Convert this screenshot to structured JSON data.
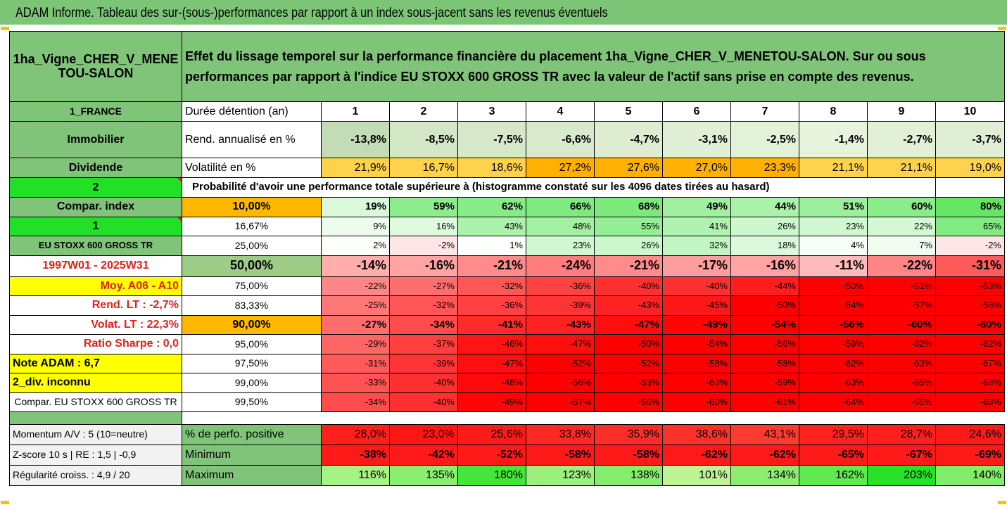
{
  "title": "ADAM Informe. Tableau des sur-(sous-)performances par rapport à un index sous-jacent sans les revenus éventuels",
  "header": {
    "asset": "1ha_Vigne_CHER_V_MENETOU-SALON",
    "description": "Effet du lissage temporel sur la performance financière du placement 1ha_Vigne_CHER_V_MENETOU-SALON. Sur ou sous performances par rapport à l'indice EU STOXX 600 GROSS TR avec la valeur de l'actif sans prise en compte des revenus."
  },
  "left_labels": {
    "country": "1_FRANCE",
    "category": "Immobilier",
    "dividend": "Dividende",
    "two": "2",
    "compar_index": "Compar. index",
    "one": "1",
    "index_name": "EU STOXX 600 GROSS TR",
    "period": "1997W01 - 2025W31",
    "moy": "Moy. A06 - A10",
    "rend_lt": "Rend. LT :   -2,7%",
    "volat_lt": "Volat. LT :   22,3%",
    "ratio_sharpe": "Ratio Sharpe :   0,0",
    "note_adam": "Note ADAM : 6,7",
    "div": "2_div. inconnu",
    "compar_full": "Compar. EU STOXX 600 GROSS TR",
    "momentum": "Momentum A/V : 5 (10=neutre)",
    "zscore": "Z-score 10 s  | RE : 1,5  | -0,9",
    "regularite": "Régularité croiss. : 4,9 / 20"
  },
  "row_labels": {
    "duration": "Durée détention (an)",
    "rend": "Rend. annualisé en %",
    "volat": "Volatilité en %",
    "proba": "Probabilité d'avoir une performance totale supérieure à (histogramme constaté sur les 4096 dates tirées au hasard)",
    "positive": "% de perfo. positive",
    "minimum": "Minimum",
    "maximum": "Maximum"
  },
  "years": [
    "1",
    "2",
    "3",
    "4",
    "5",
    "6",
    "7",
    "8",
    "9",
    "10"
  ],
  "rend": [
    "-13,8%",
    "-8,5%",
    "-7,5%",
    "-6,6%",
    "-4,7%",
    "-3,1%",
    "-2,5%",
    "-1,4%",
    "-2,7%",
    "-3,7%"
  ],
  "volat": [
    "21,9%",
    "16,7%",
    "18,6%",
    "27,2%",
    "27,6%",
    "27,0%",
    "23,3%",
    "21,1%",
    "21,1%",
    "19,0%"
  ],
  "percentile_rows": [
    {
      "p": "10,00%",
      "values": [
        "19%",
        "59%",
        "62%",
        "66%",
        "68%",
        "49%",
        "44%",
        "51%",
        "60%",
        "80%"
      ]
    },
    {
      "p": "16,67%",
      "values": [
        "9%",
        "16%",
        "43%",
        "48%",
        "55%",
        "41%",
        "26%",
        "23%",
        "22%",
        "65%"
      ]
    },
    {
      "p": "25,00%",
      "values": [
        "2%",
        "-2%",
        "1%",
        "23%",
        "26%",
        "32%",
        "18%",
        "4%",
        "7%",
        "-2%"
      ]
    },
    {
      "p": "50,00%",
      "values": [
        "-14%",
        "-16%",
        "-21%",
        "-24%",
        "-21%",
        "-17%",
        "-16%",
        "-11%",
        "-22%",
        "-31%"
      ]
    },
    {
      "p": "75,00%",
      "values": [
        "-22%",
        "-27%",
        "-32%",
        "-36%",
        "-40%",
        "-40%",
        "-44%",
        "-50%",
        "-51%",
        "-53%"
      ]
    },
    {
      "p": "83,33%",
      "values": [
        "-25%",
        "-32%",
        "-36%",
        "-39%",
        "-43%",
        "-45%",
        "-50%",
        "-54%",
        "-57%",
        "-56%"
      ]
    },
    {
      "p": "90,00%",
      "values": [
        "-27%",
        "-34%",
        "-41%",
        "-43%",
        "-47%",
        "-49%",
        "-54%",
        "-56%",
        "-60%",
        "-60%"
      ]
    },
    {
      "p": "95,00%",
      "values": [
        "-29%",
        "-37%",
        "-46%",
        "-47%",
        "-50%",
        "-54%",
        "-56%",
        "-59%",
        "-62%",
        "-62%"
      ]
    },
    {
      "p": "97,50%",
      "values": [
        "-31%",
        "-39%",
        "-47%",
        "-52%",
        "-52%",
        "-58%",
        "-58%",
        "-62%",
        "-63%",
        "-67%"
      ]
    },
    {
      "p": "99,00%",
      "values": [
        "-33%",
        "-40%",
        "-48%",
        "-56%",
        "-53%",
        "-60%",
        "-59%",
        "-63%",
        "-65%",
        "-68%"
      ]
    },
    {
      "p": "99,50%",
      "values": [
        "-34%",
        "-40%",
        "-49%",
        "-57%",
        "-56%",
        "-60%",
        "-61%",
        "-64%",
        "-65%",
        "-68%"
      ]
    }
  ],
  "positive": [
    "28,0%",
    "23,0%",
    "25,6%",
    "33,8%",
    "35,9%",
    "38,6%",
    "43,1%",
    "29,5%",
    "28,7%",
    "24,6%"
  ],
  "minimum": [
    "-38%",
    "-42%",
    "-52%",
    "-58%",
    "-58%",
    "-62%",
    "-62%",
    "-65%",
    "-67%",
    "-69%"
  ],
  "maximum": [
    "116%",
    "135%",
    "180%",
    "123%",
    "138%",
    "101%",
    "134%",
    "162%",
    "203%",
    "140%"
  ],
  "colors": {
    "header_green": "#80c47a",
    "orange": "#ffb800",
    "yellow": "#ffff00",
    "bright_green": "#22e028",
    "red_text": "#e0201b"
  }
}
